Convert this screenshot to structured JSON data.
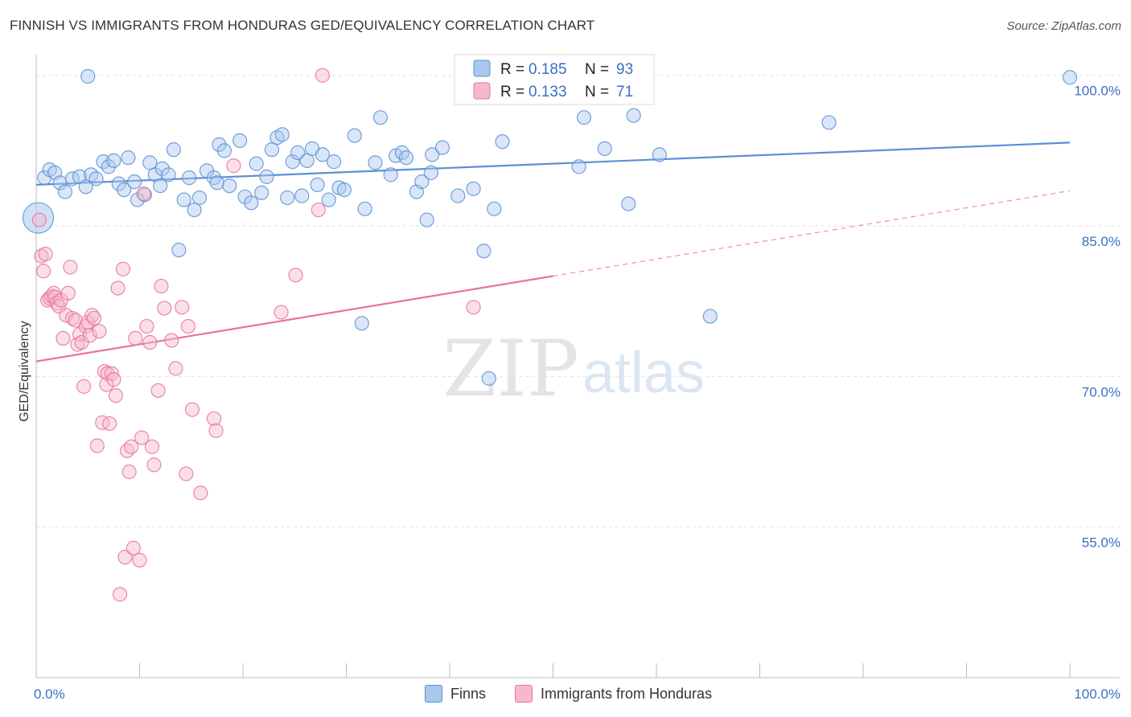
{
  "header": {
    "title": "FINNISH VS IMMIGRANTS FROM HONDURAS GED/EQUIVALENCY CORRELATION CHART",
    "source": "Source: ZipAtlas.com"
  },
  "watermark": {
    "zip": "ZIP",
    "atlas": "atlas"
  },
  "chart_data": {
    "type": "scatter",
    "title": "FINNISH VS IMMIGRANTS FROM HONDURAS GED/EQUIVALENCY CORRELATION CHART",
    "xlabel": "",
    "ylabel": "GED/Equivalency",
    "xlim": [
      0,
      100
    ],
    "ylim": [
      40,
      101.5
    ],
    "x_ticks": [
      {
        "value": 0,
        "label": "0.0%"
      },
      {
        "value": 100,
        "label": "100.0%"
      }
    ],
    "y_ticks": [
      {
        "value": 100,
        "label": "100.0%"
      },
      {
        "value": 85,
        "label": "85.0%"
      },
      {
        "value": 70,
        "label": "70.0%"
      },
      {
        "value": 55,
        "label": "55.0%"
      }
    ],
    "grid": true,
    "legend_position": "top-center",
    "stats": [
      {
        "series": "Finns",
        "r_label": "R =",
        "r": "0.185",
        "n_label": "N =",
        "n": "93"
      },
      {
        "series": "Immigrants from Honduras",
        "r_label": "R =",
        "r": "0.133",
        "n_label": "N =",
        "n": "71"
      }
    ],
    "series": [
      {
        "name": "Finns",
        "color": "#5b8fd6",
        "fill": "#aac8ee",
        "trend": {
          "x": [
            0,
            100
          ],
          "y": [
            89.1,
            93.3
          ],
          "style": "solid"
        },
        "points": [
          [
            0.2,
            85.8
          ],
          [
            0.8,
            89.8
          ],
          [
            1.3,
            90.6
          ],
          [
            1.8,
            90.3
          ],
          [
            2.3,
            89.3
          ],
          [
            2.8,
            88.4
          ],
          [
            3.5,
            89.7
          ],
          [
            4.2,
            89.9
          ],
          [
            4.8,
            88.9
          ],
          [
            5.3,
            90.1
          ],
          [
            5.8,
            89.7
          ],
          [
            6.5,
            91.4
          ],
          [
            7.0,
            90.9
          ],
          [
            7.5,
            91.5
          ],
          [
            8.0,
            89.2
          ],
          [
            8.5,
            88.6
          ],
          [
            8.9,
            91.8
          ],
          [
            9.5,
            89.4
          ],
          [
            9.8,
            87.6
          ],
          [
            10.5,
            88.1
          ],
          [
            11.0,
            91.3
          ],
          [
            11.5,
            90.1
          ],
          [
            12.0,
            89.0
          ],
          [
            12.2,
            90.7
          ],
          [
            12.8,
            90.1
          ],
          [
            13.3,
            92.6
          ],
          [
            13.8,
            82.6
          ],
          [
            14.3,
            87.6
          ],
          [
            14.8,
            89.8
          ],
          [
            15.3,
            86.6
          ],
          [
            15.8,
            87.8
          ],
          [
            16.5,
            90.5
          ],
          [
            17.2,
            89.8
          ],
          [
            17.5,
            89.3
          ],
          [
            17.7,
            93.1
          ],
          [
            18.2,
            92.5
          ],
          [
            18.7,
            89.0
          ],
          [
            19.7,
            93.5
          ],
          [
            20.2,
            87.9
          ],
          [
            20.8,
            87.3
          ],
          [
            21.3,
            91.2
          ],
          [
            21.8,
            88.3
          ],
          [
            22.3,
            89.9
          ],
          [
            22.8,
            92.6
          ],
          [
            23.3,
            93.8
          ],
          [
            23.8,
            94.1
          ],
          [
            24.3,
            87.8
          ],
          [
            24.8,
            91.4
          ],
          [
            25.3,
            92.3
          ],
          [
            25.7,
            88.0
          ],
          [
            26.2,
            91.5
          ],
          [
            26.7,
            92.7
          ],
          [
            27.2,
            89.1
          ],
          [
            27.7,
            92.1
          ],
          [
            28.3,
            87.6
          ],
          [
            28.8,
            91.4
          ],
          [
            29.3,
            88.8
          ],
          [
            29.8,
            88.6
          ],
          [
            30.8,
            94.0
          ],
          [
            31.5,
            75.3
          ],
          [
            31.8,
            86.7
          ],
          [
            32.8,
            91.3
          ],
          [
            33.3,
            95.8
          ],
          [
            34.3,
            90.1
          ],
          [
            34.8,
            92.0
          ],
          [
            35.4,
            92.3
          ],
          [
            35.8,
            91.8
          ],
          [
            36.8,
            88.4
          ],
          [
            37.3,
            89.4
          ],
          [
            37.8,
            85.6
          ],
          [
            38.2,
            90.3
          ],
          [
            38.3,
            92.1
          ],
          [
            39.3,
            92.8
          ],
          [
            40.8,
            88.0
          ],
          [
            41.3,
            98.4
          ],
          [
            42.3,
            88.7
          ],
          [
            43.3,
            82.5
          ],
          [
            43.8,
            69.8
          ],
          [
            44.3,
            86.7
          ],
          [
            45.1,
            93.4
          ],
          [
            52.5,
            90.9
          ],
          [
            53.0,
            95.8
          ],
          [
            55.0,
            92.7
          ],
          [
            56.2,
            99.7
          ],
          [
            57.3,
            87.2
          ],
          [
            57.8,
            96.0
          ],
          [
            59.0,
            99.8
          ],
          [
            60.3,
            92.1
          ],
          [
            65.2,
            76.0
          ],
          [
            76.7,
            95.3
          ],
          [
            100.0,
            99.8
          ],
          [
            5.0,
            99.9
          ],
          [
            44.8,
            99.6
          ]
        ]
      },
      {
        "name": "Immigrants from Honduras",
        "color": "#e8739a",
        "fill": "#f6b9cc",
        "trend": {
          "x": [
            0,
            50
          ],
          "y": [
            71.5,
            80.0
          ],
          "style": "solid",
          "extension": {
            "x": [
              50,
              100
            ],
            "y": [
              80.0,
              88.5
            ],
            "style": "dashed"
          }
        },
        "points": [
          [
            0.3,
            85.6
          ],
          [
            0.5,
            82.0
          ],
          [
            0.7,
            80.5
          ],
          [
            0.9,
            82.2
          ],
          [
            1.1,
            77.6
          ],
          [
            1.3,
            77.8
          ],
          [
            1.5,
            78.0
          ],
          [
            1.7,
            78.3
          ],
          [
            1.8,
            77.9
          ],
          [
            2.0,
            77.3
          ],
          [
            2.2,
            77.0
          ],
          [
            2.4,
            77.6
          ],
          [
            2.6,
            73.8
          ],
          [
            2.9,
            76.1
          ],
          [
            3.1,
            78.3
          ],
          [
            3.3,
            80.9
          ],
          [
            3.5,
            75.8
          ],
          [
            3.8,
            75.6
          ],
          [
            4.0,
            73.2
          ],
          [
            4.2,
            74.2
          ],
          [
            4.4,
            73.4
          ],
          [
            4.6,
            69.0
          ],
          [
            4.8,
            75.0
          ],
          [
            5.0,
            75.4
          ],
          [
            5.2,
            74.1
          ],
          [
            5.4,
            76.1
          ],
          [
            5.6,
            75.8
          ],
          [
            5.9,
            63.1
          ],
          [
            6.1,
            74.5
          ],
          [
            6.4,
            65.4
          ],
          [
            6.6,
            70.5
          ],
          [
            6.8,
            69.2
          ],
          [
            6.9,
            70.3
          ],
          [
            7.1,
            65.3
          ],
          [
            7.3,
            70.3
          ],
          [
            7.5,
            69.7
          ],
          [
            7.7,
            68.1
          ],
          [
            7.9,
            78.8
          ],
          [
            8.1,
            48.3
          ],
          [
            8.4,
            80.7
          ],
          [
            8.6,
            52.0
          ],
          [
            8.8,
            62.6
          ],
          [
            9.0,
            60.5
          ],
          [
            9.2,
            63.0
          ],
          [
            9.4,
            52.9
          ],
          [
            9.6,
            73.8
          ],
          [
            10.0,
            51.7
          ],
          [
            10.2,
            63.9
          ],
          [
            10.4,
            88.2
          ],
          [
            10.7,
            75.0
          ],
          [
            11.0,
            73.4
          ],
          [
            11.2,
            63.0
          ],
          [
            11.4,
            61.2
          ],
          [
            11.8,
            68.6
          ],
          [
            12.1,
            79.0
          ],
          [
            12.4,
            76.8
          ],
          [
            13.1,
            73.6
          ],
          [
            13.5,
            70.8
          ],
          [
            14.1,
            76.9
          ],
          [
            14.5,
            60.3
          ],
          [
            14.7,
            75.0
          ],
          [
            15.1,
            66.7
          ],
          [
            15.9,
            58.4
          ],
          [
            17.2,
            65.8
          ],
          [
            17.4,
            64.6
          ],
          [
            19.1,
            91.0
          ],
          [
            23.7,
            76.4
          ],
          [
            25.1,
            80.1
          ],
          [
            27.3,
            86.6
          ],
          [
            27.7,
            100.0
          ],
          [
            42.3,
            76.9
          ]
        ]
      }
    ]
  }
}
